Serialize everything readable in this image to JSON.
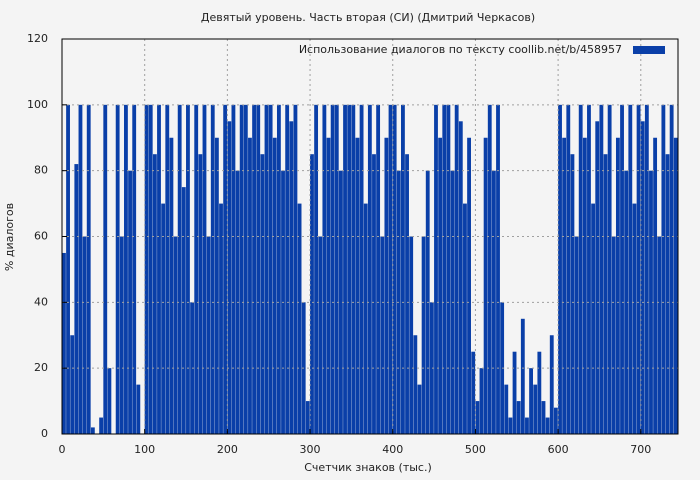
{
  "chart_data": {
    "type": "bar",
    "title": "Девятый уровень. Часть вторая (СИ) (Дмитрий Черкасов)",
    "x_label": "Счетчик знаков (тыс.)",
    "y_label": "% диалогов",
    "xlim": [
      0,
      745
    ],
    "ylim": [
      0,
      120
    ],
    "xticks": [
      0,
      100,
      200,
      300,
      400,
      500,
      600,
      700
    ],
    "yticks": [
      0,
      20,
      40,
      60,
      80,
      100,
      120
    ],
    "grid": true,
    "legend": "upper right",
    "x": [
      0,
      5,
      10,
      15,
      20,
      25,
      30,
      35,
      40,
      45,
      50,
      55,
      60,
      65,
      70,
      75,
      80,
      85,
      90,
      95,
      100,
      105,
      110,
      115,
      120,
      125,
      130,
      135,
      140,
      145,
      150,
      155,
      160,
      165,
      170,
      175,
      180,
      185,
      190,
      195,
      200,
      205,
      210,
      215,
      220,
      225,
      230,
      235,
      240,
      245,
      250,
      255,
      260,
      265,
      270,
      275,
      280,
      285,
      290,
      295,
      300,
      305,
      310,
      315,
      320,
      325,
      330,
      335,
      340,
      345,
      350,
      355,
      360,
      365,
      370,
      375,
      380,
      385,
      390,
      395,
      400,
      405,
      410,
      415,
      420,
      425,
      430,
      435,
      440,
      445,
      450,
      455,
      460,
      465,
      470,
      475,
      480,
      485,
      490,
      495,
      500,
      505,
      510,
      515,
      520,
      525,
      530,
      535,
      540,
      545,
      550,
      555,
      560,
      565,
      570,
      575,
      580,
      585,
      590,
      595,
      600,
      605,
      610,
      615,
      620,
      625,
      630,
      635,
      640,
      645,
      650,
      655,
      660,
      665,
      670,
      675,
      680,
      685,
      690,
      695,
      700,
      705,
      710,
      715,
      720,
      725,
      730,
      735,
      740
    ],
    "series": [
      {
        "name": "Использование диалогов по тексту  coollib.net/b/458957",
        "color": "#0a3fa8",
        "values": [
          55,
          100,
          30,
          82,
          100,
          60,
          100,
          2,
          0,
          5,
          100,
          20,
          0,
          100,
          60,
          100,
          80,
          100,
          15,
          0,
          100,
          100,
          85,
          100,
          70,
          100,
          90,
          60,
          100,
          75,
          100,
          40,
          100,
          85,
          100,
          60,
          100,
          90,
          70,
          100,
          95,
          100,
          80,
          100,
          100,
          90,
          100,
          100,
          85,
          100,
          100,
          90,
          100,
          80,
          100,
          95,
          100,
          70,
          40,
          10,
          85,
          100,
          60,
          100,
          90,
          100,
          100,
          80,
          100,
          100,
          100,
          90,
          100,
          70,
          100,
          85,
          100,
          60,
          90,
          100,
          100,
          80,
          100,
          85,
          60,
          30,
          15,
          60,
          80,
          40,
          100,
          90,
          100,
          100,
          80,
          100,
          95,
          70,
          90,
          25,
          10,
          20,
          90,
          100,
          80,
          100,
          40,
          15,
          5,
          25,
          10,
          35,
          5,
          20,
          15,
          25,
          10,
          5,
          30,
          8,
          100,
          90,
          100,
          85,
          60,
          100,
          90,
          100,
          70,
          95,
          100,
          85,
          100,
          60,
          90,
          100,
          80,
          100,
          70,
          100,
          95,
          100,
          80,
          90,
          60,
          100,
          85,
          100,
          90
        ]
      }
    ]
  }
}
